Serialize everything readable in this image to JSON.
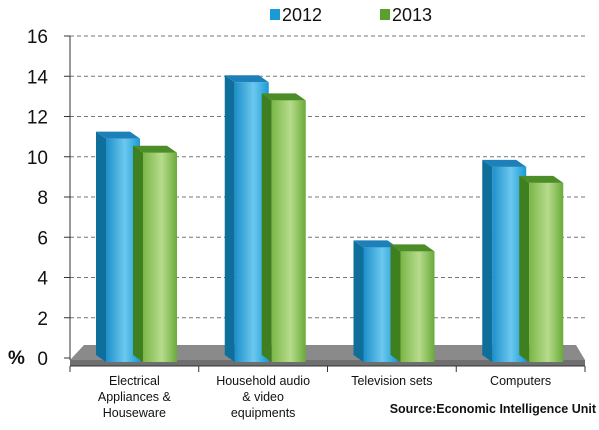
{
  "chart_data": {
    "type": "bar",
    "categories": [
      [
        "Electrical",
        "Appliances &",
        "Houseware"
      ],
      [
        "Household audio",
        "& video",
        "equipments"
      ],
      [
        "Television sets"
      ],
      [
        "Computers"
      ]
    ],
    "series": [
      {
        "name": "2012",
        "values": [
          10.9,
          13.7,
          5.5,
          9.5
        ],
        "color": "#1a9ad6"
      },
      {
        "name": "2013",
        "values": [
          10.2,
          12.8,
          5.3,
          8.7
        ],
        "color": "#5aa02c"
      }
    ],
    "ylabel": "%",
    "ylim": [
      0,
      16
    ],
    "yticks": [
      0,
      2,
      4,
      6,
      8,
      10,
      12,
      14,
      16
    ],
    "grid": true,
    "legend_position": "top",
    "source": "Source:Economic Intelligence Unit"
  }
}
